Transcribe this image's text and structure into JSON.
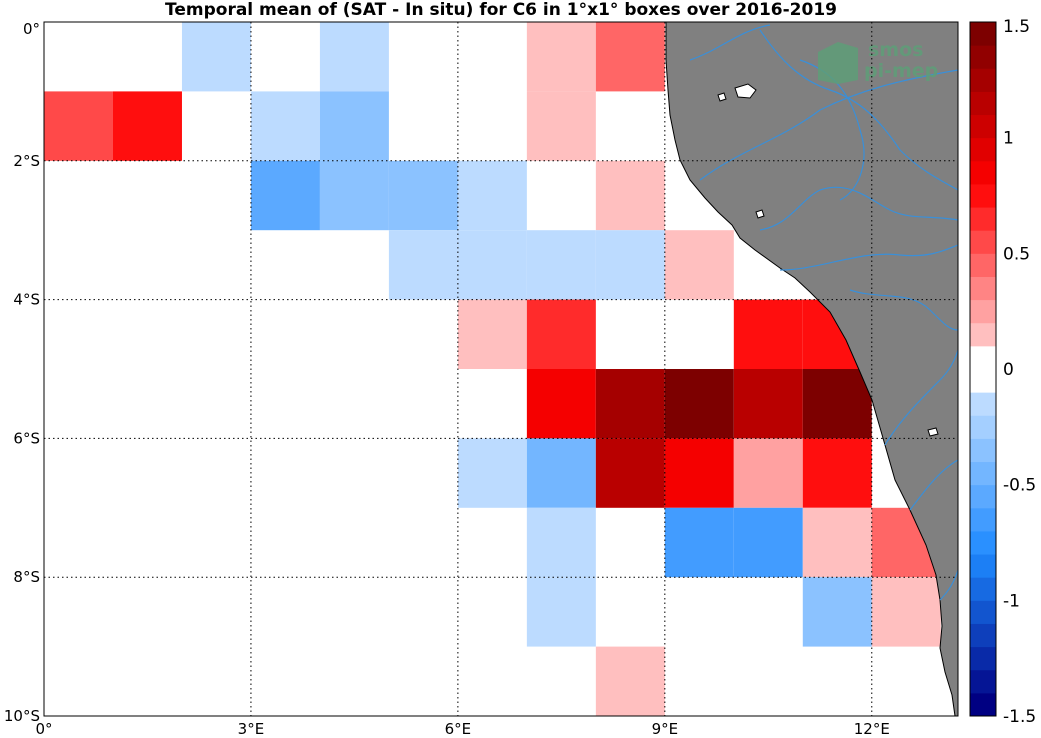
{
  "chart_data": {
    "type": "heatmap",
    "title": "Temporal mean of (SAT - In situ) for C6 in 1°x1° boxes over 2016-2019",
    "x_ticks": [
      {
        "value": 0,
        "label": "0°"
      },
      {
        "value": 3,
        "label": "3°E"
      },
      {
        "value": 6,
        "label": "6°E"
      },
      {
        "value": 9,
        "label": "9°E"
      },
      {
        "value": 12,
        "label": "12°E"
      }
    ],
    "y_ticks": [
      {
        "value": 0,
        "label": "0°"
      },
      {
        "value": -2,
        "label": "2°S"
      },
      {
        "value": -4,
        "label": "4°S"
      },
      {
        "value": -6,
        "label": "6°S"
      },
      {
        "value": -8,
        "label": "8°S"
      },
      {
        "value": -10,
        "label": "10°S"
      }
    ],
    "xlim": [
      0,
      13.25
    ],
    "ylim": [
      -10,
      0
    ],
    "grid": true,
    "colorbar": {
      "range": [
        -1.5,
        1.5
      ],
      "ticks": [
        {
          "value": 1.5,
          "label": "1.5"
        },
        {
          "value": 1,
          "label": "1"
        },
        {
          "value": 0.5,
          "label": "0.5"
        },
        {
          "value": 0,
          "label": "0"
        },
        {
          "value": -0.5,
          "label": "-0.5"
        },
        {
          "value": -1,
          "label": "-1"
        },
        {
          "value": -1.5,
          "label": "-1.5"
        }
      ]
    },
    "cells": [
      {
        "lon": 2,
        "lat": 0,
        "value": -0.1
      },
      {
        "lon": 4,
        "lat": 0,
        "value": -0.1
      },
      {
        "lon": 7,
        "lat": 0,
        "value": 0.1
      },
      {
        "lon": 8,
        "lat": 0,
        "value": 0.4
      },
      {
        "lon": 0,
        "lat": -1,
        "value": 0.5
      },
      {
        "lon": 1,
        "lat": -1,
        "value": 0.7
      },
      {
        "lon": 3,
        "lat": -1,
        "value": -0.2
      },
      {
        "lon": 4,
        "lat": -1,
        "value": -0.3
      },
      {
        "lon": 7,
        "lat": -1,
        "value": 0.1
      },
      {
        "lon": 3,
        "lat": -2,
        "value": -0.6
      },
      {
        "lon": 4,
        "lat": -2,
        "value": -0.4
      },
      {
        "lon": 5,
        "lat": -2,
        "value": -0.3
      },
      {
        "lon": 6,
        "lat": -2,
        "value": -0.1
      },
      {
        "lon": 8,
        "lat": -2,
        "value": 0.1
      },
      {
        "lon": 5,
        "lat": -3,
        "value": -0.1
      },
      {
        "lon": 6,
        "lat": -3,
        "value": -0.1
      },
      {
        "lon": 7,
        "lat": -3,
        "value": -0.2
      },
      {
        "lon": 8,
        "lat": -3,
        "value": -0.1
      },
      {
        "lon": 9,
        "lat": -3,
        "value": 0.1
      },
      {
        "lon": 6,
        "lat": -4,
        "value": 0.1
      },
      {
        "lon": 7,
        "lat": -4,
        "value": 0.6
      },
      {
        "lon": 10,
        "lat": -4,
        "value": 0.7
      },
      {
        "lon": 11,
        "lat": -4,
        "value": 0.7
      },
      {
        "lon": 7,
        "lat": -5,
        "value": 0.9
      },
      {
        "lon": 8,
        "lat": -5,
        "value": 1.3
      },
      {
        "lon": 9,
        "lat": -5,
        "value": 1.45
      },
      {
        "lon": 10,
        "lat": -5,
        "value": 1.1
      },
      {
        "lon": 11,
        "lat": -5,
        "value": 1.45
      },
      {
        "lon": 6,
        "lat": -6,
        "value": -0.2
      },
      {
        "lon": 7,
        "lat": -6,
        "value": -0.45
      },
      {
        "lon": 8,
        "lat": -6,
        "value": 1.1
      },
      {
        "lon": 9,
        "lat": -6,
        "value": 0.9
      },
      {
        "lon": 10,
        "lat": -6,
        "value": 0.25
      },
      {
        "lon": 11,
        "lat": -6,
        "value": 0.75
      },
      {
        "lon": 7,
        "lat": -7,
        "value": -0.2
      },
      {
        "lon": 9,
        "lat": -7,
        "value": -0.7
      },
      {
        "lon": 10,
        "lat": -7,
        "value": -0.7
      },
      {
        "lon": 11,
        "lat": -7,
        "value": 0.1
      },
      {
        "lon": 12,
        "lat": -7,
        "value": 0.4
      },
      {
        "lon": 7,
        "lat": -8,
        "value": -0.1
      },
      {
        "lon": 11,
        "lat": -8,
        "value": -0.3
      },
      {
        "lon": 12,
        "lat": -8,
        "value": 0.1
      },
      {
        "lon": 8,
        "lat": -9,
        "value": 0.1
      }
    ]
  },
  "colors": {
    "land": "#808080",
    "river": "#3a8fd8",
    "grid": "#000000"
  },
  "logo": {
    "line1": "smos",
    "line2": "pi-mep"
  }
}
